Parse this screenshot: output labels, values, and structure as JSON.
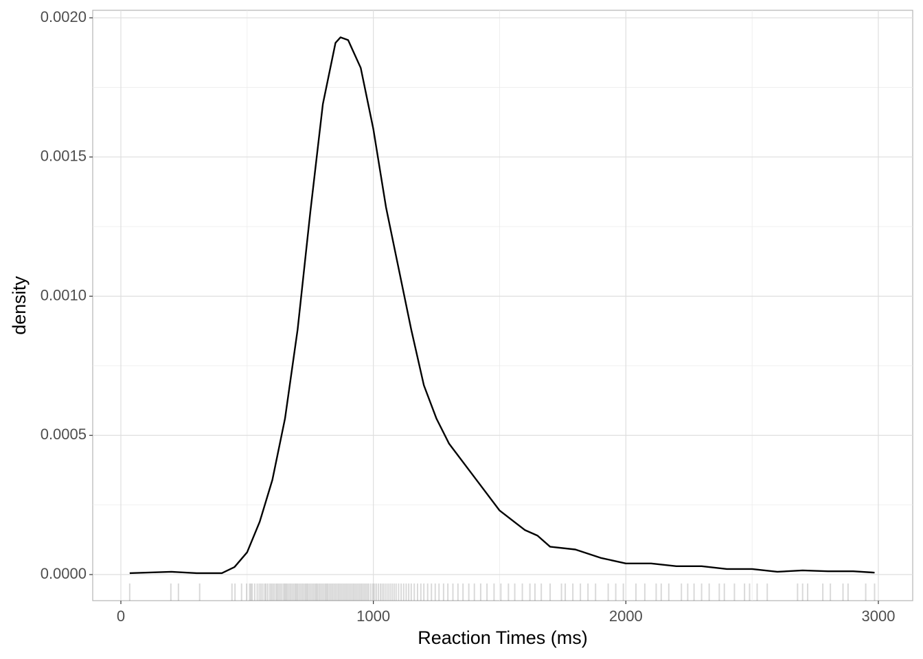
{
  "chart_data": {
    "type": "density",
    "x_label": "Reaction Times (ms)",
    "y_label": "density",
    "xlim": [
      -111.5,
      3136
    ],
    "ylim": [
      -9.37e-05,
      0.002027
    ],
    "xticks": [
      0,
      1000,
      2000,
      3000
    ],
    "yticks": [
      {
        "value": 0,
        "label": "0.0000"
      },
      {
        "value": 0.0005,
        "label": "0.0005"
      },
      {
        "value": 0.001,
        "label": "0.0010"
      },
      {
        "value": 0.0015,
        "label": "0.0015"
      },
      {
        "value": 0.002,
        "label": "0.0020"
      }
    ],
    "grid": true,
    "color": "#000000",
    "x": [
      35,
      200,
      300,
      400,
      450,
      500,
      550,
      600,
      650,
      700,
      750,
      800,
      850,
      870,
      900,
      950,
      1000,
      1050,
      1100,
      1150,
      1200,
      1250,
      1300,
      1400,
      1500,
      1600,
      1650,
      1700,
      1800,
      1900,
      2000,
      2100,
      2200,
      2300,
      2400,
      2500,
      2600,
      2700,
      2800,
      2900,
      2985
    ],
    "values": [
      5e-06,
      1e-05,
      5e-06,
      5e-06,
      2.7e-05,
      8e-05,
      0.00019,
      0.00034,
      0.00056,
      0.00088,
      0.0013,
      0.00169,
      0.00191,
      0.00193,
      0.00192,
      0.00182,
      0.0016,
      0.00132,
      0.0011,
      0.00088,
      0.00068,
      0.00056,
      0.00047,
      0.00035,
      0.00023,
      0.00016,
      0.00014,
      0.0001,
      9e-05,
      6e-05,
      4e-05,
      4e-05,
      3e-05,
      3e-05,
      2e-05,
      2e-05,
      1e-05,
      1.5e-05,
      1.2e-05,
      1.2e-05,
      7e-06
    ],
    "rug": [
      35,
      198,
      228,
      312,
      440,
      452,
      478,
      498,
      510,
      515,
      520,
      530,
      540,
      548,
      555,
      562,
      570,
      575,
      582,
      590,
      596,
      602,
      608,
      615,
      620,
      626,
      632,
      638,
      645,
      650,
      655,
      660,
      666,
      672,
      678,
      684,
      690,
      695,
      700,
      706,
      712,
      718,
      724,
      730,
      735,
      740,
      746,
      752,
      758,
      764,
      770,
      775,
      780,
      786,
      792,
      798,
      804,
      810,
      815,
      820,
      826,
      832,
      838,
      844,
      850,
      856,
      862,
      868,
      874,
      880,
      886,
      892,
      898,
      904,
      910,
      916,
      922,
      928,
      934,
      940,
      946,
      952,
      958,
      964,
      970,
      976,
      982,
      990,
      998,
      1005,
      1012,
      1020,
      1028,
      1035,
      1042,
      1050,
      1058,
      1066,
      1074,
      1082,
      1090,
      1100,
      1110,
      1120,
      1130,
      1140,
      1150,
      1162,
      1175,
      1188,
      1200,
      1215,
      1230,
      1245,
      1260,
      1278,
      1295,
      1315,
      1335,
      1355,
      1378,
      1400,
      1425,
      1450,
      1478,
      1505,
      1535,
      1560,
      1590,
      1620,
      1640,
      1665,
      1700,
      1745,
      1760,
      1790,
      1820,
      1850,
      1880,
      1930,
      1960,
      1990,
      2040,
      2075,
      2120,
      2140,
      2170,
      2220,
      2245,
      2270,
      2300,
      2330,
      2370,
      2390,
      2430,
      2470,
      2490,
      2520,
      2560,
      2680,
      2700,
      2720,
      2780,
      2810,
      2860,
      2880,
      2950,
      2985
    ]
  }
}
